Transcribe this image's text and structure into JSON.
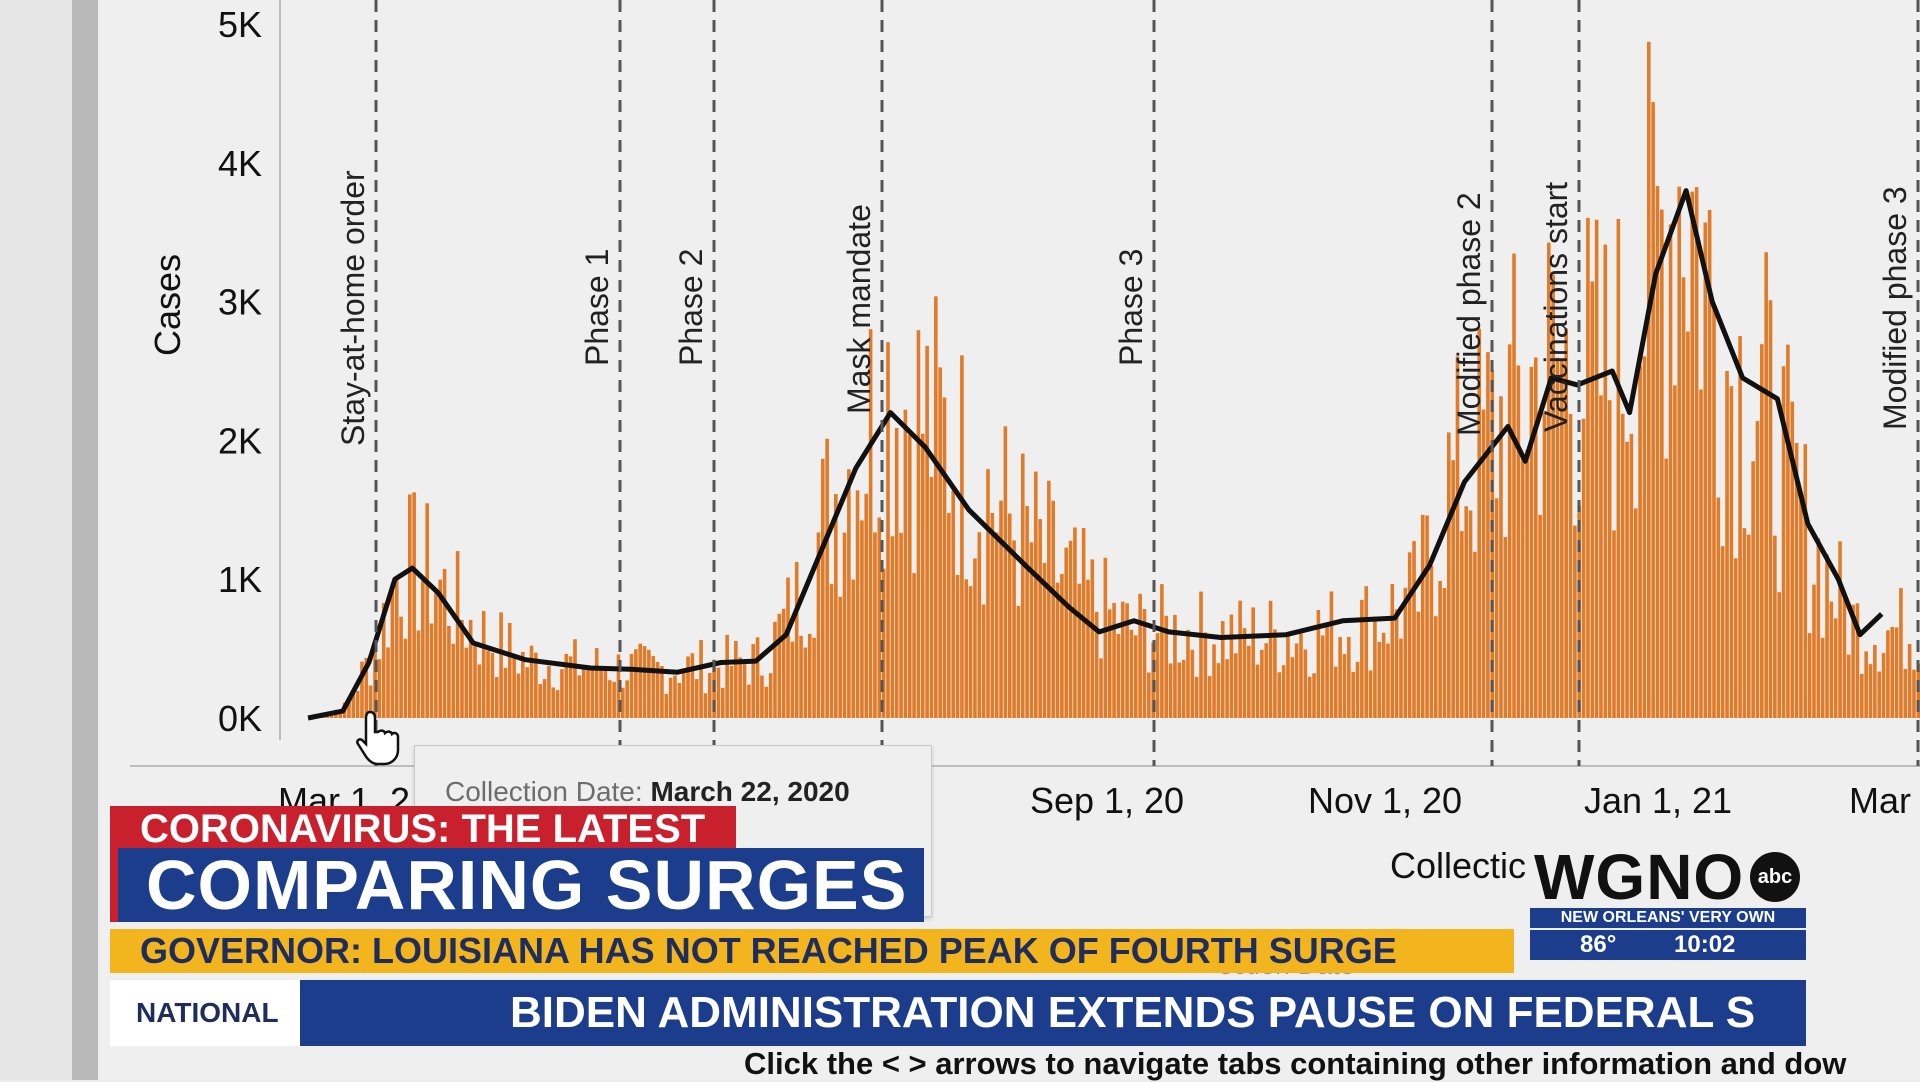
{
  "chart_data": {
    "type": "bar",
    "ylabel": "Cases",
    "ylim": [
      0,
      5000
    ],
    "y_ticks": [
      "0K",
      "1K",
      "2K",
      "3K",
      "4K",
      "5K"
    ],
    "x_ticks": [
      "Mar 1, 2",
      "Sep 1, 20",
      "Nov 1, 20",
      "Jan 1, 21",
      "Mar"
    ],
    "xlabel": "Collectic",
    "bar_color": "#e07b29",
    "line_color": "#111111",
    "events": [
      "Stay-at-home order",
      "Phase 1",
      "Phase 2",
      "Mask mandate",
      "Phase 3",
      "Modified phase 2",
      "Vaccinations start",
      "Modified phase 3"
    ],
    "daily_cases_profile": [
      {
        "day": 0,
        "cases": 0
      },
      {
        "day": 8,
        "cases": 80
      },
      {
        "day": 15,
        "cases": 500
      },
      {
        "day": 21,
        "cases": 1150
      },
      {
        "day": 28,
        "cases": 1050
      },
      {
        "day": 38,
        "cases": 650
      },
      {
        "day": 50,
        "cases": 420
      },
      {
        "day": 65,
        "cases": 380
      },
      {
        "day": 80,
        "cases": 360
      },
      {
        "day": 95,
        "cases": 400
      },
      {
        "day": 104,
        "cases": 420
      },
      {
        "day": 112,
        "cases": 850
      },
      {
        "day": 120,
        "cases": 1600
      },
      {
        "day": 133,
        "cases": 2450
      },
      {
        "day": 145,
        "cases": 2100
      },
      {
        "day": 160,
        "cases": 1500
      },
      {
        "day": 175,
        "cases": 1000
      },
      {
        "day": 188,
        "cases": 650
      },
      {
        "day": 195,
        "cases": 650
      },
      {
        "day": 215,
        "cases": 600
      },
      {
        "day": 230,
        "cases": 620
      },
      {
        "day": 245,
        "cases": 720
      },
      {
        "day": 255,
        "cases": 900
      },
      {
        "day": 262,
        "cases": 1700
      },
      {
        "day": 272,
        "cases": 2100
      },
      {
        "day": 285,
        "cases": 2600
      },
      {
        "day": 300,
        "cases": 2500
      },
      {
        "day": 309,
        "cases": 3400
      },
      {
        "day": 316,
        "cases": 4100
      },
      {
        "day": 326,
        "cases": 2600
      },
      {
        "day": 335,
        "cases": 2300
      },
      {
        "day": 345,
        "cases": 1300
      },
      {
        "day": 355,
        "cases": 700
      },
      {
        "day": 362,
        "cases": 650
      }
    ],
    "rolling_average": [
      {
        "day": 0,
        "cases": 0
      },
      {
        "day": 8,
        "cases": 50
      },
      {
        "day": 14,
        "cases": 400
      },
      {
        "day": 20,
        "cases": 1000
      },
      {
        "day": 24,
        "cases": 1080
      },
      {
        "day": 30,
        "cases": 900
      },
      {
        "day": 38,
        "cases": 540
      },
      {
        "day": 50,
        "cases": 420
      },
      {
        "day": 65,
        "cases": 360
      },
      {
        "day": 75,
        "cases": 350
      },
      {
        "day": 85,
        "cases": 330
      },
      {
        "day": 95,
        "cases": 400
      },
      {
        "day": 103,
        "cases": 410
      },
      {
        "day": 110,
        "cases": 600
      },
      {
        "day": 118,
        "cases": 1200
      },
      {
        "day": 126,
        "cases": 1800
      },
      {
        "day": 134,
        "cases": 2200
      },
      {
        "day": 142,
        "cases": 1950
      },
      {
        "day": 152,
        "cases": 1500
      },
      {
        "day": 165,
        "cases": 1100
      },
      {
        "day": 175,
        "cases": 800
      },
      {
        "day": 182,
        "cases": 620
      },
      {
        "day": 190,
        "cases": 700
      },
      {
        "day": 198,
        "cases": 620
      },
      {
        "day": 210,
        "cases": 580
      },
      {
        "day": 225,
        "cases": 600
      },
      {
        "day": 238,
        "cases": 700
      },
      {
        "day": 250,
        "cases": 720
      },
      {
        "day": 258,
        "cases": 1100
      },
      {
        "day": 266,
        "cases": 1700
      },
      {
        "day": 276,
        "cases": 2100
      },
      {
        "day": 280,
        "cases": 1850
      },
      {
        "day": 286,
        "cases": 2450
      },
      {
        "day": 292,
        "cases": 2400
      },
      {
        "day": 300,
        "cases": 2500
      },
      {
        "day": 304,
        "cases": 2200
      },
      {
        "day": 310,
        "cases": 3200
      },
      {
        "day": 317,
        "cases": 3800
      },
      {
        "day": 323,
        "cases": 3000
      },
      {
        "day": 330,
        "cases": 2450
      },
      {
        "day": 338,
        "cases": 2300
      },
      {
        "day": 345,
        "cases": 1400
      },
      {
        "day": 352,
        "cases": 1000
      },
      {
        "day": 357,
        "cases": 600
      },
      {
        "day": 362,
        "cases": 750
      }
    ]
  },
  "tooltip": {
    "label": "Collection Date:",
    "value": "March 22, 2020"
  },
  "hint": "Click the < > arrows to navigate tabs containing other information and dow",
  "ghost_caption": "ection Date",
  "lower_third": {
    "category": "CORONAVIRUS: THE LATEST",
    "headline": "COMPARING SURGES",
    "subheadline": "GOVERNOR: LOUISIANA HAS NOT REACHED PEAK OF FOURTH SURGE",
    "ticker_label": "NATIONAL",
    "ticker_text": "BIDEN ADMINISTRATION EXTENDS PAUSE ON FEDERAL S"
  },
  "station": {
    "logo": "WGNO",
    "network": "abc",
    "tagline": "NEW ORLEANS' VERY OWN",
    "temperature": "86°",
    "time": "10:02"
  },
  "colors": {
    "brand_blue": "#1b3d8c",
    "brand_red": "#c8202c",
    "brand_yellow": "#f2b51e"
  }
}
